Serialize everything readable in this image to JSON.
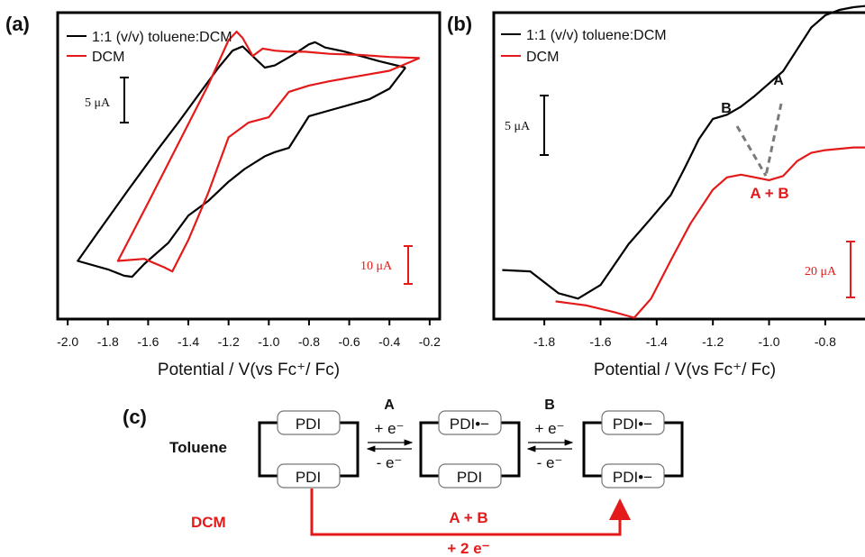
{
  "colors": {
    "black_trace": "#000000",
    "red_trace": "#e41a1a",
    "dashed": "#7a7a7a"
  },
  "chart_data": [
    {
      "panel": "(a)",
      "type": "line",
      "xlabel": "Potential / V(vs Fc⁺/ Fc)",
      "xlim": [
        -2.05,
        -0.15
      ],
      "xticks": [
        -2.0,
        -1.8,
        -1.6,
        -1.4,
        -1.2,
        -1.0,
        -0.8,
        -0.6,
        -0.4,
        -0.2
      ],
      "xtick_labels": [
        "-2.0",
        "-1.8",
        "-1.6",
        "-1.4",
        "-1.2",
        "-1.0",
        "-0.8",
        "-0.6",
        "-0.4",
        "-0.2"
      ],
      "ylim": [
        -23,
        6
      ],
      "ylabel": "",
      "legend_position": "top-left",
      "scale_bars": [
        {
          "label": "5 μA",
          "value": 5,
          "color": "black"
        },
        {
          "label": "10 μA",
          "value": 10,
          "color": "red"
        }
      ],
      "series": [
        {
          "name": "1:1 (v/v) toluene:DCM",
          "color": "black",
          "x": [
            -0.32,
            -0.45,
            -0.62,
            -0.72,
            -0.77,
            -0.8,
            -0.88,
            -0.97,
            -1.02,
            -1.07,
            -1.13,
            -1.18,
            -1.25,
            -1.35,
            -1.45,
            -1.55,
            -1.7,
            -1.85,
            -1.95,
            -1.8,
            -1.72,
            -1.68,
            -1.62,
            -1.5,
            -1.4,
            -1.3,
            -1.2,
            -1.12,
            -1.02,
            -0.97,
            -0.9,
            -0.8,
            -0.65,
            -0.5,
            -0.4,
            -0.32
          ],
          "y": [
            0.8,
            1.4,
            2.3,
            2.7,
            3.2,
            3.0,
            2.0,
            1.0,
            0.8,
            1.7,
            2.8,
            2.4,
            0.8,
            -1.8,
            -4.4,
            -6.9,
            -10.8,
            -14.8,
            -17.5,
            -18.3,
            -18.9,
            -19.0,
            -17.8,
            -15.8,
            -13.2,
            -11.8,
            -10.0,
            -8.8,
            -7.6,
            -7.2,
            -6.8,
            -3.8,
            -3.0,
            -2.2,
            -1.2,
            0.8
          ]
        },
        {
          "name": "DCM",
          "color": "red",
          "x": [
            -0.25,
            -0.4,
            -0.55,
            -0.7,
            -0.82,
            -0.9,
            -0.97,
            -1.03,
            -1.08,
            -1.13,
            -1.16,
            -1.2,
            -1.3,
            -1.45,
            -1.6,
            -1.75,
            -1.62,
            -1.52,
            -1.48,
            -1.4,
            -1.3,
            -1.2,
            -1.1,
            -1.0,
            -0.9,
            -0.8,
            -0.7,
            -0.55,
            -0.4,
            -0.25
          ],
          "y": [
            1.7,
            1.8,
            2.0,
            2.1,
            2.3,
            2.3,
            2.4,
            2.6,
            1.9,
            3.6,
            4.2,
            3.4,
            -0.8,
            -6.4,
            -12.0,
            -17.5,
            -17.3,
            -18.1,
            -18.5,
            -15.5,
            -11.0,
            -5.8,
            -4.4,
            -3.9,
            -1.5,
            -0.9,
            -0.5,
            0.0,
            0.5,
            1.7
          ]
        }
      ]
    },
    {
      "panel": "(b)",
      "type": "line",
      "xlabel": "Potential / V(vs Fc⁺/ Fc)",
      "xlim": [
        -1.98,
        -0.62
      ],
      "xticks": [
        -1.8,
        -1.6,
        -1.4,
        -1.2,
        -1.0,
        -0.8
      ],
      "xtick_labels": [
        "-1.8",
        "-1.6",
        "-1.4",
        "-1.2",
        "-1.0",
        "-0.8"
      ],
      "ylim": [
        -6.5,
        16
      ],
      "ylabel": "",
      "legend_position": "top-left",
      "scale_bars": [
        {
          "label": "5 μA",
          "value": 5,
          "color": "black"
        },
        {
          "label": "20 μA",
          "value": 20,
          "color": "red"
        }
      ],
      "annotations": [
        {
          "text": "A",
          "color": "black",
          "x": -0.93,
          "y": 11.4
        },
        {
          "text": "B",
          "color": "black",
          "x": -1.24,
          "y": 9.3
        },
        {
          "text": "A + B",
          "color": "red",
          "x": -1.0,
          "y": 2.4
        }
      ],
      "series": [
        {
          "name": "1:1 (v/v) toluene:DCM",
          "color": "black",
          "x": [
            -1.95,
            -1.85,
            -1.75,
            -1.68,
            -1.6,
            -1.5,
            -1.42,
            -1.35,
            -1.3,
            -1.25,
            -1.2,
            -1.15,
            -1.1,
            -1.05,
            -1.0,
            -0.95,
            -0.9,
            -0.85,
            -0.8,
            -0.75,
            -0.7,
            -0.65
          ],
          "y": [
            -2.9,
            -3.0,
            -4.6,
            -5.0,
            -4.0,
            -1.0,
            0.9,
            2.6,
            4.6,
            6.7,
            8.2,
            8.5,
            9.1,
            9.9,
            10.8,
            11.7,
            13.3,
            14.9,
            15.8,
            16.2,
            16.4,
            16.5
          ]
        },
        {
          "name": "DCM",
          "color": "red",
          "x": [
            -1.76,
            -1.65,
            -1.55,
            -1.48,
            -1.42,
            -1.35,
            -1.28,
            -1.2,
            -1.15,
            -1.1,
            -1.05,
            -1.0,
            -0.95,
            -0.9,
            -0.85,
            -0.8,
            -0.75,
            -0.7,
            -0.65
          ],
          "y": [
            -5.2,
            -5.5,
            -6.0,
            -6.4,
            -5.0,
            -2.2,
            0.5,
            3.0,
            3.9,
            4.1,
            3.9,
            3.7,
            4.0,
            5.1,
            5.7,
            5.9,
            6.0,
            6.1,
            6.1
          ]
        }
      ]
    }
  ],
  "panels": {
    "a": {
      "label": "(a)",
      "legend": [
        "1:1 (v/v) toluene:DCM",
        "DCM"
      ],
      "scale_black": "5 μA",
      "scale_red": "10 μA",
      "xlabel": "Potential / V(vs Fc⁺/ Fc)"
    },
    "b": {
      "label": "(b)",
      "legend": [
        "1:1 (v/v) toluene:DCM",
        "DCM"
      ],
      "scale_black": "5 μA",
      "scale_red": "20 μA",
      "xlabel": "Potential / V(vs Fc⁺/ Fc)",
      "peak_a": "A",
      "peak_b": "B",
      "peak_ab": "A + B"
    },
    "c": {
      "label": "(c)",
      "row_toluene": "Toluene",
      "row_dcm": "DCM",
      "box1_top": "PDI",
      "box1_bottom": "PDI",
      "box2_top": "PDI•−",
      "box2_bottom": "PDI",
      "box3_top": "PDI•−",
      "box3_bottom": "PDI•−",
      "step1_name": "A",
      "step1_fwd": "+ e⁻",
      "step1_rev": "- e⁻",
      "step2_name": "B",
      "step2_fwd": "+ e⁻",
      "step2_rev": "- e⁻",
      "dcm_step_name": "A + B",
      "dcm_step_electrons": "+ 2 e⁻"
    }
  }
}
